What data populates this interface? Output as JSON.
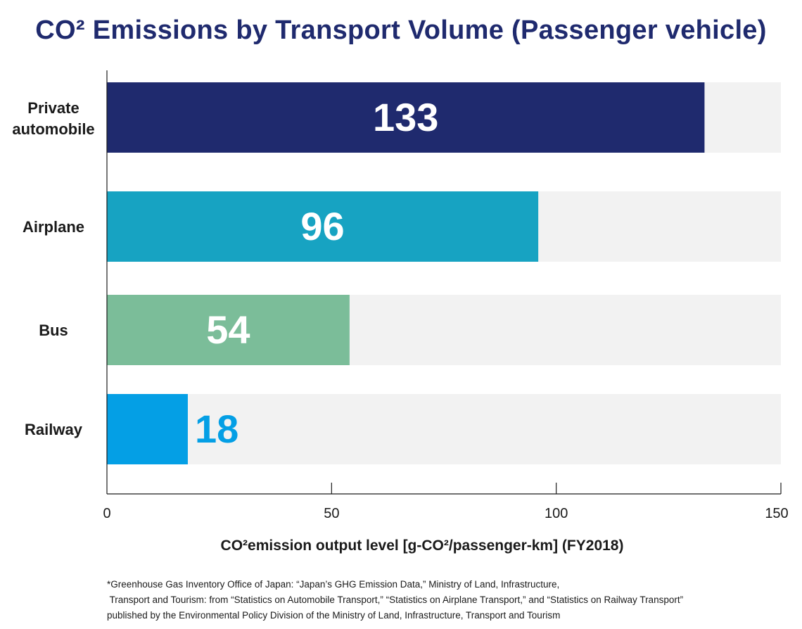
{
  "title": "CO² Emissions by Transport Volume (Passenger vehicle)",
  "chart_data": {
    "type": "bar",
    "orientation": "horizontal",
    "title": "CO² Emissions by Transport Volume (Passenger vehicle)",
    "xlabel": "CO²emission output level [g-CO²/passenger-km] (FY2018)",
    "ylabel": "",
    "xlim": [
      0,
      150
    ],
    "x_ticks": [
      0,
      50,
      100,
      150
    ],
    "categories": [
      {
        "line1": "Private",
        "line2": "automobile"
      },
      {
        "line1": "Airplane",
        "line2": ""
      },
      {
        "line1": "Bus",
        "line2": ""
      },
      {
        "line1": "Railway",
        "line2": ""
      }
    ],
    "values": [
      133,
      96,
      54,
      18
    ],
    "value_labels": [
      "133",
      "96",
      "54",
      "18"
    ],
    "bar_colors": [
      "#1f2a6e",
      "#17a3c2",
      "#7bbd99",
      "#049fe5"
    ],
    "label_colors": [
      "#ffffff",
      "#ffffff",
      "#ffffff",
      "#049fe5"
    ],
    "track_color": "#f2f2f2",
    "grid": false,
    "legend": "none"
  },
  "footnote": [
    "*Greenhouse Gas Inventory Office of Japan: “Japan’s GHG Emission Data,” Ministry of Land, Infrastructure,",
    " Transport and Tourism: from “Statistics on Automobile Transport,” “Statistics on Airplane Transport,” and “Statistics on Railway Transport”",
    "published by the Environmental Policy Division of the Ministry of Land, Infrastructure, Transport and Tourism"
  ]
}
